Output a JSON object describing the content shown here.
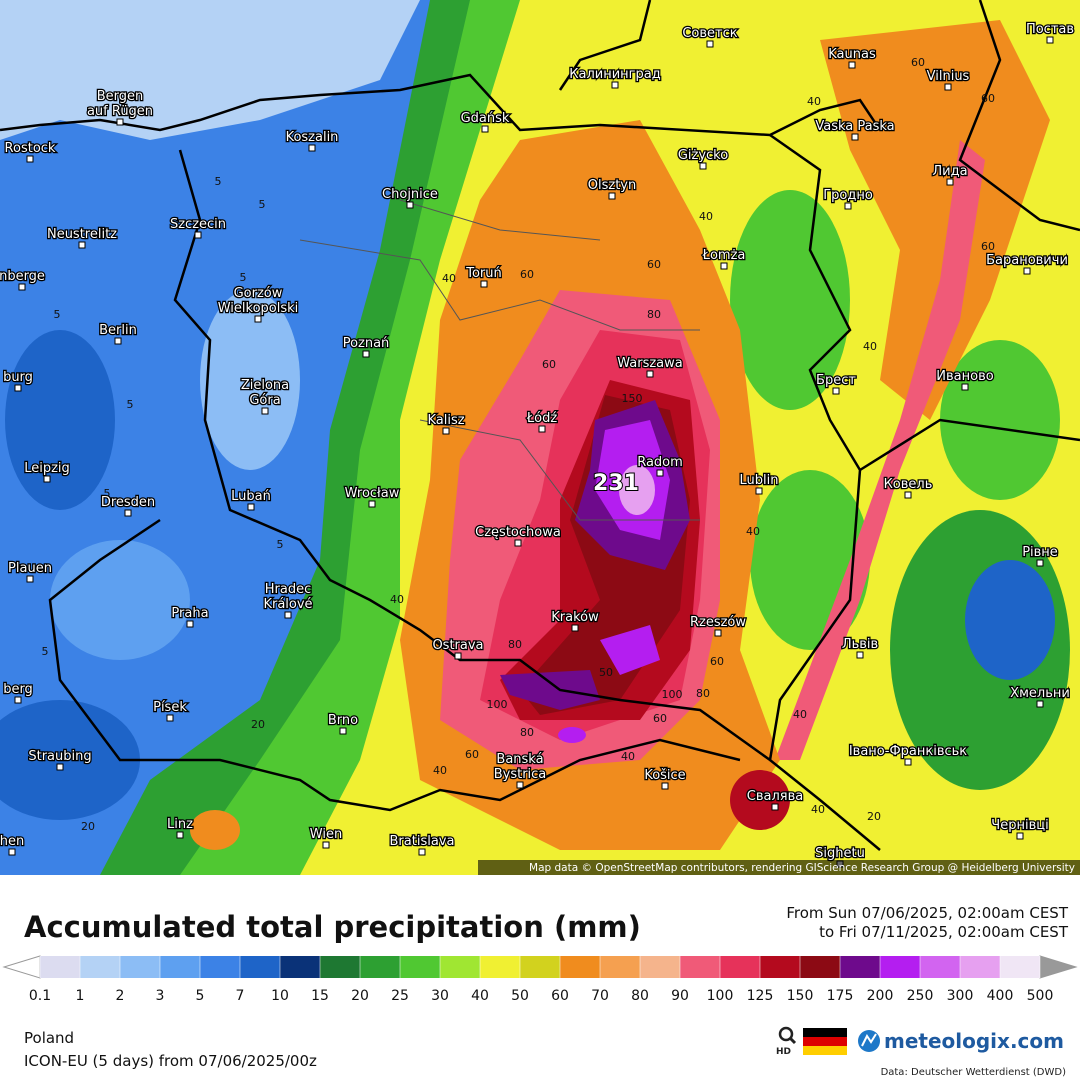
{
  "map": {
    "cities": [
      [
        "Советск"
      ],
      [
        "Kaunas"
      ],
      [
        "Vilnius"
      ],
      [
        "Постав"
      ],
      [
        "Калининград"
      ],
      [
        "Bergen",
        "auf Rügen"
      ],
      [
        "Gdańsk"
      ],
      [
        "Vaska Paska"
      ],
      [
        "Rostock"
      ],
      [
        "Koszalin"
      ],
      [
        "Giżycko"
      ],
      [
        "Лида"
      ],
      [
        "Olsztyn"
      ],
      [
        "Гродно"
      ],
      [
        "Chojnice"
      ],
      [
        "Szczecin"
      ],
      [
        "Neustrelitz"
      ],
      [
        "Toruń"
      ],
      [
        "Łomża"
      ],
      [
        "Барановичи"
      ],
      [
        "nberge"
      ],
      [
        "Gorzów",
        "Wielkopolski"
      ],
      [
        "Berlin"
      ],
      [
        "Poznań"
      ],
      [
        "Warszawa"
      ],
      [
        "Брест"
      ],
      [
        "Иваново"
      ],
      [
        "burg"
      ],
      [
        "Zielona",
        "Góra"
      ],
      [
        "Kalisz"
      ],
      [
        "Łódź"
      ],
      [
        "Radom"
      ],
      [
        "Lublin"
      ],
      [
        "Ковель"
      ],
      [
        "Leipzig"
      ],
      [
        "Wrocław"
      ],
      [
        "Lubań"
      ],
      [
        "Dresden"
      ],
      [
        "Częstochowa"
      ],
      [
        "Plauen"
      ],
      [
        "Hradec",
        "Králové"
      ],
      [
        "Рівне"
      ],
      [
        "Praha"
      ],
      [
        "Kraków"
      ],
      [
        "Rzeszów"
      ],
      [
        "Ostrava"
      ],
      [
        "Львів"
      ],
      [
        "berg"
      ],
      [
        "Хмельни"
      ],
      [
        "Písek"
      ],
      [
        "Brno"
      ],
      [
        "Banská",
        "Bystrica"
      ],
      [
        "Івано-Франківськ"
      ],
      [
        "Straubing"
      ],
      [
        "Košice"
      ],
      [
        "Свалява"
      ],
      [
        "Linz"
      ],
      [
        "Wien"
      ],
      [
        "Bratislava"
      ],
      [
        "Чернівці"
      ],
      [
        "Sighetu"
      ],
      [
        "hen"
      ]
    ],
    "contour_labels": [
      5,
      5,
      5,
      5,
      5,
      5,
      5,
      5,
      20,
      20,
      40,
      60,
      60,
      80,
      60,
      40,
      40,
      60,
      60,
      60,
      40,
      150,
      40,
      40,
      80,
      80,
      60,
      100,
      100,
      80,
      60,
      40,
      40,
      60,
      40,
      40,
      20,
      50
    ],
    "max_value": 231,
    "attribution": "Map data © OpenStreetMap contributors, rendering GIScience Research Group @ Heidelberg University"
  },
  "legend": {
    "title": "Accumulated total precipitation (mm)",
    "period": [
      "From Sun 07/06/2025, 02:00am CEST",
      "to Fri 07/11/2025, 02:00am CEST"
    ],
    "ticks": [
      0.1,
      1,
      2,
      3,
      5,
      7,
      10,
      15,
      20,
      25,
      30,
      40,
      50,
      60,
      70,
      80,
      90,
      100,
      125,
      150,
      175,
      200,
      250,
      300,
      400,
      500
    ],
    "colors": [
      "#dcdcf0",
      "#b4d2f5",
      "#8cbdf5",
      "#5ea0f0",
      "#3c82e6",
      "#1e64c8",
      "#0a3278",
      "#1e7832",
      "#2da032",
      "#50c832",
      "#a0e632",
      "#f0f032",
      "#d2d21e",
      "#f08c1e",
      "#f5a050",
      "#f5b48c",
      "#f05a78",
      "#e6325a",
      "#b40a1e",
      "#8c0a14",
      "#6e0a8c",
      "#b41ef0",
      "#d264f0",
      "#e6a0f0",
      "#f0e6f5"
    ]
  },
  "footer": {
    "region": "Poland",
    "model": "ICON-EU (5 days) from 07/06/2025/00z",
    "hd": "HD",
    "brand": "meteologix.com",
    "source": "Data: Deutscher Wetterdienst (DWD)"
  }
}
